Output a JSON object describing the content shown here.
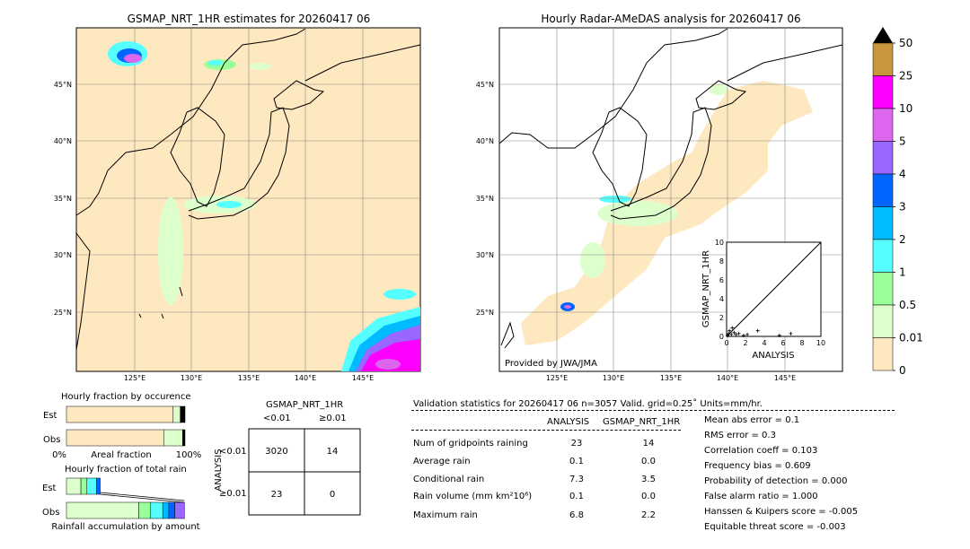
{
  "left_map": {
    "title": "GSMAP_NRT_1HR estimates for 20260417 06",
    "lat_labels": [
      "45°N",
      "40°N",
      "35°N",
      "30°N",
      "25°N"
    ],
    "lon_labels": [
      "125°E",
      "130°E",
      "135°E",
      "140°E",
      "145°E"
    ]
  },
  "right_map": {
    "title": "Hourly Radar-AMeDAS analysis for 20260417 06",
    "lat_labels": [
      "45°N",
      "40°N",
      "35°N",
      "30°N",
      "25°N"
    ],
    "lon_labels": [
      "125°E",
      "130°E",
      "135°E",
      "140°E",
      "145°E"
    ],
    "credit": "Provided by JWA/JMA"
  },
  "colorbar": {
    "labels": [
      "50",
      "25",
      "10",
      "5",
      "4",
      "3",
      "2",
      "1",
      "0.5",
      "0.01",
      "0"
    ],
    "colors": [
      "#c8963c",
      "#ff00ff",
      "#dd66ee",
      "#9966ff",
      "#0066ff",
      "#00bbff",
      "#55ffff",
      "#99ff99",
      "#ddffcc",
      "#fde8c0"
    ],
    "extend_color": "#000000"
  },
  "chart_data": [
    {
      "type": "scatter",
      "title": "",
      "xlabel": "ANALYSIS",
      "ylabel": "GSMAP_NRT_1HR",
      "xlim": [
        0,
        10
      ],
      "ylim": [
        0,
        10
      ],
      "xticks": [
        "0",
        "2",
        "4",
        "6",
        "8",
        "10"
      ],
      "yticks": [
        "0",
        "2",
        "4",
        "6",
        "8",
        "10"
      ],
      "x": [
        0.1,
        0.2,
        0.3,
        0.5,
        0.6,
        0.8,
        1.0,
        1.3,
        1.8,
        2.2,
        3.3,
        5.6,
        6.8
      ],
      "y": [
        0.1,
        0.3,
        0.6,
        0.2,
        0.9,
        0.4,
        0.2,
        0.3,
        0.1,
        0.2,
        0.6,
        0.1,
        0.3
      ],
      "diagonal": true
    },
    {
      "type": "bar",
      "title": "Hourly fraction by occurence",
      "categories": [
        "Est",
        "Obs"
      ],
      "xlabel": "Areal fraction",
      "xtick_left": "0%",
      "xtick_right": "100%",
      "est_segments": [
        0.9,
        0.06,
        0.04
      ],
      "obs_segments": [
        0.82,
        0.16,
        0.02
      ],
      "segment_colors": [
        "#fde8c0",
        "#ddffcc",
        "#000000"
      ]
    },
    {
      "type": "bar",
      "title": "Hourly fraction of total rain",
      "categories": [
        "Est",
        "Obs"
      ],
      "xlabel": "Rainfall accumulation by amount",
      "est_segments": [
        0.12,
        0.05,
        0.08,
        0.03
      ],
      "est_colors": [
        "#ddffcc",
        "#99ff99",
        "#55ffff",
        "#0066ff"
      ],
      "obs_segments": [
        0.6,
        0.1,
        0.1,
        0.05,
        0.05,
        0.08
      ],
      "obs_colors": [
        "#ddffcc",
        "#99ff99",
        "#55ffff",
        "#00bbff",
        "#0066ff",
        "#9966ff"
      ]
    }
  ],
  "contingency": {
    "header": "GSMAP_NRT_1HR",
    "col_lt": "<0.01",
    "col_ge": "≥0.01",
    "row_label": "ANALYSIS",
    "row_lt": "<0.01",
    "row_ge": "≥0.01",
    "cells": [
      "3020",
      "14",
      "23",
      "0"
    ]
  },
  "validation": {
    "header": "Validation statistics for 20260417 06  n=3057 Valid. grid=0.25˚ Units=mm/hr.",
    "col_analysis": "ANALYSIS",
    "col_gsmap": "GSMAP_NRT_1HR",
    "rows": [
      {
        "label": "Num of gridpoints raining",
        "analysis": "23",
        "gsmap": "14"
      },
      {
        "label": "Average rain",
        "analysis": "0.1",
        "gsmap": "0.0"
      },
      {
        "label": "Conditional rain",
        "analysis": "7.3",
        "gsmap": "3.5"
      },
      {
        "label": "Rain volume (mm km²10⁶)",
        "analysis": "0.1",
        "gsmap": "0.0"
      },
      {
        "label": "Maximum rain",
        "analysis": "6.8",
        "gsmap": "2.2"
      }
    ],
    "scores": [
      "Mean abs error =    0.1",
      "RMS error =    0.3",
      "Correlation coeff =  0.103",
      "Frequency bias =  0.609",
      "Probability of detection =  0.000",
      "False alarm ratio =  1.000",
      "Hanssen & Kuipers score = -0.005",
      "Equitable threat score = -0.003"
    ]
  }
}
